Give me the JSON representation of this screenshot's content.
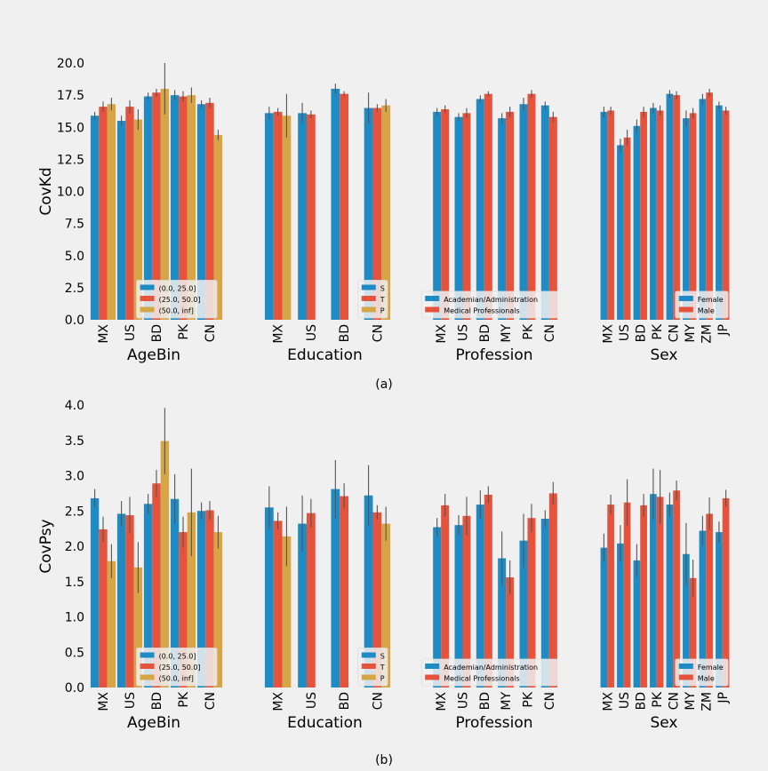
{
  "colors": {
    "blue": "#1f8bc4",
    "red": "#e5533c",
    "gold": "#d6a545",
    "err": "#555555"
  },
  "captions": [
    "(a)",
    "(b)"
  ],
  "chart_data": [
    {
      "type": "bar",
      "ylabel": "CovKd",
      "ylim": [
        0,
        20.0
      ],
      "yticks": [
        "0.0",
        "2.5",
        "5.0",
        "7.5",
        "10.0",
        "12.5",
        "15.0",
        "17.5",
        "20.0"
      ],
      "panels": [
        {
          "xlabel": "AgeBin",
          "categories": [
            "MX",
            "US",
            "BD",
            "PK",
            "CN"
          ],
          "legend": [
            "(0.0, 25.0]",
            "(25.0, 50.0]",
            "(50.0, inf]"
          ],
          "series": [
            {
              "name": "(0.0, 25.0]",
              "values": [
                15.9,
                15.5,
                17.4,
                17.5,
                16.8
              ],
              "err": [
                0.3,
                0.4,
                0.3,
                0.4,
                0.3
              ]
            },
            {
              "name": "(25.0, 50.0]",
              "values": [
                16.6,
                16.6,
                17.7,
                17.4,
                16.9
              ],
              "err": [
                0.4,
                0.5,
                0.3,
                0.4,
                0.4
              ]
            },
            {
              "name": "(50.0, inf]",
              "values": [
                16.8,
                15.6,
                18.0,
                17.5,
                14.4
              ],
              "err": [
                0.5,
                0.8,
                2.0,
                0.6,
                0.4
              ]
            }
          ]
        },
        {
          "xlabel": "Education",
          "categories": [
            "MX",
            "US",
            "BD",
            "CN"
          ],
          "legend": [
            "S",
            "T",
            "P"
          ],
          "series": [
            {
              "name": "S",
              "values": [
                16.1,
                16.1,
                18.0,
                16.5
              ],
              "err": [
                0.5,
                0.8,
                0.4,
                1.2
              ]
            },
            {
              "name": "T",
              "values": [
                16.2,
                16.0,
                17.6,
                16.5
              ],
              "err": [
                0.3,
                0.3,
                0.2,
                0.3
              ]
            },
            {
              "name": "P",
              "values": [
                15.9,
                null,
                null,
                16.7
              ],
              "err": [
                1.7,
                null,
                null,
                0.5
              ]
            }
          ]
        },
        {
          "xlabel": "Profession",
          "categories": [
            "MX",
            "US",
            "BD",
            "MY",
            "PK",
            "CN"
          ],
          "legend": [
            "Academian/Administration",
            "Medical Professionals"
          ],
          "series": [
            {
              "name": "Academian/Administration",
              "values": [
                16.2,
                15.8,
                17.2,
                15.7,
                16.8,
                16.7
              ],
              "err": [
                0.3,
                0.3,
                0.3,
                0.4,
                0.5,
                0.3
              ]
            },
            {
              "name": "Medical Professionals",
              "values": [
                16.4,
                16.1,
                17.6,
                16.2,
                17.6,
                15.8
              ],
              "err": [
                0.3,
                0.4,
                0.2,
                0.4,
                0.3,
                0.4
              ]
            }
          ]
        },
        {
          "xlabel": "Sex",
          "categories": [
            "MX",
            "US",
            "BD",
            "PK",
            "CN",
            "MY",
            "ZM",
            "JP"
          ],
          "legend": [
            "Female",
            "Male"
          ],
          "series": [
            {
              "name": "Female",
              "values": [
                16.2,
                13.6,
                15.1,
                16.5,
                17.6,
                15.7,
                17.2,
                16.7
              ],
              "err": [
                0.4,
                0.5,
                0.5,
                0.4,
                0.3,
                0.6,
                0.4,
                0.3
              ]
            },
            {
              "name": "Male",
              "values": [
                16.3,
                14.2,
                16.2,
                16.3,
                17.5,
                16.1,
                17.7,
                16.3
              ],
              "err": [
                0.3,
                0.6,
                0.4,
                0.4,
                0.3,
                0.4,
                0.3,
                0.3
              ]
            }
          ]
        }
      ]
    },
    {
      "type": "bar",
      "ylabel": "CovPsy",
      "ylim": [
        0,
        4.0
      ],
      "yticks": [
        "0.0",
        "0.5",
        "1.0",
        "1.5",
        "2.0",
        "2.5",
        "3.0",
        "3.5",
        "4.0"
      ],
      "panels": [
        {
          "xlabel": "AgeBin",
          "categories": [
            "MX",
            "US",
            "BD",
            "PK",
            "CN"
          ],
          "legend": [
            "(0.0, 25.0]",
            "(25.0, 50.0]",
            "(50.0, inf]"
          ],
          "series": [
            {
              "name": "(0.0, 25.0]",
              "values": [
                2.68,
                2.46,
                2.6,
                2.67,
                2.5
              ],
              "err": [
                0.13,
                0.18,
                0.14,
                0.35,
                0.12
              ]
            },
            {
              "name": "(25.0, 50.0]",
              "values": [
                2.24,
                2.44,
                2.89,
                2.2,
                2.51
              ],
              "err": [
                0.18,
                0.26,
                0.19,
                0.22,
                0.13
              ]
            },
            {
              "name": "(50.0, inf]",
              "values": [
                1.79,
                1.7,
                3.49,
                2.48,
                2.2
              ],
              "err": [
                0.24,
                0.36,
                0.47,
                0.62,
                0.23
              ]
            }
          ]
        },
        {
          "xlabel": "Education",
          "categories": [
            "MX",
            "US",
            "BD",
            "CN"
          ],
          "legend": [
            "S",
            "T",
            "P"
          ],
          "series": [
            {
              "name": "S",
              "values": [
                2.55,
                2.32,
                2.81,
                2.72
              ],
              "err": [
                0.3,
                0.4,
                0.41,
                0.43
              ]
            },
            {
              "name": "T",
              "values": [
                2.36,
                2.47,
                2.71,
                2.48
              ],
              "err": [
                0.12,
                0.2,
                0.18,
                0.1
              ]
            },
            {
              "name": "P",
              "values": [
                2.14,
                null,
                null,
                2.32
              ],
              "err": [
                0.42,
                null,
                null,
                0.24
              ]
            }
          ]
        },
        {
          "xlabel": "Profession",
          "categories": [
            "MX",
            "US",
            "BD",
            "MY",
            "PK",
            "CN"
          ],
          "legend": [
            "Academian/Administration",
            "Medical Professionals"
          ],
          "series": [
            {
              "name": "Academian/Administration",
              "values": [
                2.27,
                2.3,
                2.59,
                1.83,
                2.08,
                2.39
              ],
              "err": [
                0.13,
                0.14,
                0.2,
                0.38,
                0.38,
                0.12
              ]
            },
            {
              "name": "Medical Professionals",
              "values": [
                2.58,
                2.43,
                2.73,
                1.56,
                2.4,
                2.75
              ],
              "err": [
                0.16,
                0.27,
                0.12,
                0.24,
                0.2,
                0.16
              ]
            }
          ]
        },
        {
          "xlabel": "Sex",
          "categories": [
            "MX",
            "US",
            "BD",
            "PK",
            "CN",
            "MY",
            "ZM",
            "JP"
          ],
          "legend": [
            "Female",
            "Male"
          ],
          "series": [
            {
              "name": "Female",
              "values": [
                1.98,
                2.04,
                1.8,
                2.74,
                2.59,
                1.89,
                2.22,
                2.2
              ],
              "err": [
                0.2,
                0.26,
                0.23,
                0.36,
                0.17,
                0.44,
                0.21,
                0.15
              ]
            },
            {
              "name": "Male",
              "values": [
                2.59,
                2.62,
                2.58,
                2.7,
                2.79,
                1.55,
                2.46,
                2.68
              ],
              "err": [
                0.14,
                0.33,
                0.16,
                0.38,
                0.14,
                0.26,
                0.23,
                0.12
              ]
            }
          ]
        }
      ]
    }
  ]
}
